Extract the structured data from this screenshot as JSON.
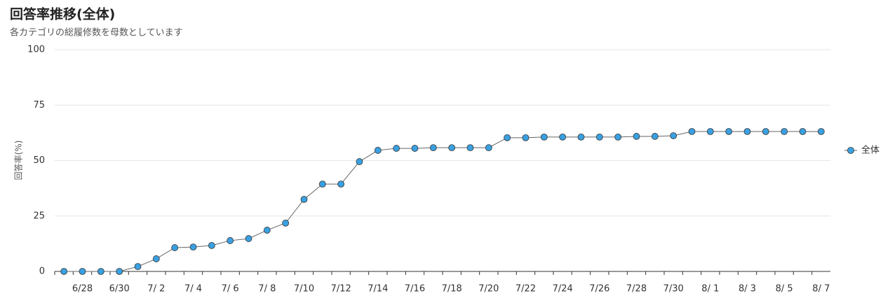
{
  "chart_data": {
    "type": "line",
    "title": "回答率推移(全体)",
    "subtitle": "各カテゴリの総履修数を母数としています",
    "y_label": "回答率(%)",
    "categories": [
      null,
      "6/28",
      null,
      "6/30",
      null,
      "7/ 2",
      null,
      "7/ 4",
      null,
      "7/ 6",
      null,
      "7/ 8",
      null,
      "7/10",
      null,
      "7/12",
      null,
      "7/14",
      null,
      "7/16",
      null,
      "7/18",
      null,
      "7/20",
      null,
      "7/22",
      null,
      "7/24",
      null,
      "7/26",
      null,
      "7/28",
      null,
      "7/30",
      null,
      "8/ 1",
      null,
      "8/ 3",
      null,
      "8/ 5",
      null,
      "8/ 7"
    ],
    "series": [
      {
        "name": "全体",
        "color": "#3aa0e0",
        "values": [
          0,
          0,
          0,
          0,
          2.2,
          5.7,
          10.7,
          11,
          11.7,
          13.9,
          14.8,
          18.6,
          21.8,
          32.5,
          39.4,
          39.4,
          49.5,
          54.6,
          55.5,
          55.5,
          55.8,
          55.8,
          55.8,
          55.8,
          60.3,
          60.3,
          60.6,
          60.6,
          60.6,
          60.6,
          60.6,
          60.9,
          60.9,
          61.2,
          63.1,
          63.1,
          63.1,
          63.1,
          63.1,
          63.1,
          63.1,
          63.1
        ]
      }
    ],
    "ylim": [
      0,
      100
    ],
    "yticks": [
      0,
      25,
      50,
      75,
      100
    ],
    "grid": true,
    "legend": "right"
  }
}
